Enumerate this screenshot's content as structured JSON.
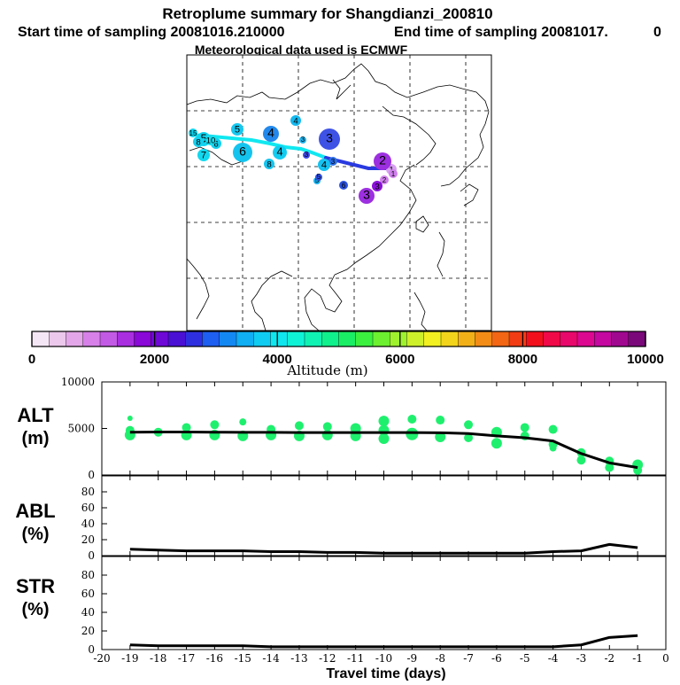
{
  "header": {
    "title": "Retroplume summary for Shangdianzi_200810",
    "start_label": "Start time of sampling 20081016.210000",
    "end_label": "End time of sampling 20081017.",
    "end_suffix": "0",
    "met_label": "Meteorological data used is ECMWF"
  },
  "colorbar": {
    "ticks": [
      "0",
      "2000",
      "4000",
      "6000",
      "8000",
      "10000"
    ],
    "label": "Altitude (m)",
    "colors": [
      "#f5e6f5",
      "#ecc8ec",
      "#e3a6e8",
      "#d680e8",
      "#c35ae5",
      "#a82ee0",
      "#8a08d8",
      "#6e08d6",
      "#4a10d4",
      "#2e30e0",
      "#1e5ef0",
      "#1488f2",
      "#10aef2",
      "#10ccf2",
      "#10e6ee",
      "#10f2d6",
      "#10f2b4",
      "#10f08c",
      "#1aee64",
      "#3cf040",
      "#6cf030",
      "#9ef22e",
      "#cef02a",
      "#f2f020",
      "#f2d41c",
      "#f2b018",
      "#f28c16",
      "#f26614",
      "#f23c14",
      "#f2101c",
      "#f00a48",
      "#e8086c",
      "#dc0890",
      "#c408a0",
      "#a00890",
      "#7a087a"
    ]
  },
  "map": {
    "points": [
      {
        "label": "1",
        "color": "#d7a0f0"
      },
      {
        "label": "2",
        "color": "#9c2fe0"
      },
      {
        "label": "3",
        "color": "#9c2fe0"
      },
      {
        "label": "1",
        "color": "#d080ec"
      },
      {
        "label": "2",
        "color": "#d080ec"
      },
      {
        "label": "3",
        "color": "#8a10d8"
      },
      {
        "label": "3",
        "color": "#3f52e6"
      },
      {
        "label": "3",
        "color": "#2a6de8"
      },
      {
        "label": "3",
        "color": "#3c48e4"
      },
      {
        "label": "4",
        "color": "#14b8ee"
      },
      {
        "label": "4",
        "color": "#2288ec"
      },
      {
        "label": "4",
        "color": "#16c2f0"
      },
      {
        "label": "3",
        "color": "#22b4ee"
      },
      {
        "label": "4",
        "color": "#12ccf0"
      },
      {
        "label": "5",
        "color": "#16c8f0"
      },
      {
        "label": "5",
        "color": "#10d4f0"
      },
      {
        "label": "5",
        "color": "#18b0ec"
      },
      {
        "label": "6",
        "color": "#14c4ee"
      },
      {
        "label": "6",
        "color": "#12d0ee"
      },
      {
        "label": "8",
        "color": "#16c4ee"
      },
      {
        "label": "7",
        "color": "#12d8ee"
      },
      {
        "label": "10",
        "color": "#18dcee"
      },
      {
        "label": "8",
        "color": "#14d0ee"
      },
      {
        "label": "15",
        "color": "#12d4ee"
      },
      {
        "label": "5",
        "color": "#3050e0"
      },
      {
        "label": "6",
        "color": "#2a52e0"
      }
    ]
  },
  "chart_data": [
    {
      "type": "line",
      "panel": "ALT",
      "ylabel": "ALT",
      "yunit": "(m)",
      "ylim": [
        0,
        10000
      ],
      "yticks": [
        "0",
        "5000",
        "10000"
      ],
      "series": [
        {
          "name": "mean altitude",
          "x": [
            -19,
            -18,
            -17,
            -16,
            -15,
            -14,
            -13,
            -12,
            -11,
            -10,
            -9,
            -8,
            -7,
            -6,
            -5,
            -4,
            -3,
            -2,
            -1
          ],
          "values": [
            4600,
            4620,
            4620,
            4600,
            4580,
            4580,
            4560,
            4560,
            4560,
            4560,
            4560,
            4540,
            4450,
            4200,
            4000,
            3650,
            2300,
            1300,
            800
          ]
        }
      ],
      "scatter_x": [
        -19,
        -19,
        -19,
        -18,
        -17,
        -17,
        -16,
        -16,
        -15,
        -15,
        -14,
        -14,
        -13,
        -13,
        -12,
        -12,
        -11,
        -11,
        -10,
        -10,
        -10,
        -9,
        -9,
        -8,
        -8,
        -7,
        -7,
        -6,
        -6,
        -5,
        -5,
        -4,
        -4,
        -4,
        -3,
        -3,
        -2,
        -2,
        -1,
        -1
      ],
      "scatter_y": [
        6100,
        4800,
        4300,
        4600,
        5100,
        4300,
        5400,
        4300,
        5700,
        4200,
        4900,
        4300,
        5300,
        4200,
        5200,
        4300,
        5000,
        4200,
        5800,
        4800,
        3900,
        6000,
        4400,
        5900,
        4100,
        5400,
        4000,
        4600,
        3400,
        5100,
        4200,
        4900,
        3300,
        2900,
        2400,
        1600,
        1500,
        800,
        1100,
        500
      ],
      "scatter_r": [
        3,
        5,
        6,
        5,
        5,
        6,
        5,
        6,
        4,
        6,
        5,
        6,
        5,
        6,
        5,
        6,
        6,
        6,
        6,
        6,
        6,
        5,
        7,
        5,
        6,
        5,
        5,
        6,
        6,
        5,
        5,
        5,
        5,
        4,
        5,
        5,
        5,
        5,
        6,
        5
      ]
    },
    {
      "type": "line",
      "panel": "ABL",
      "ylabel": "ABL",
      "yunit": "(%)",
      "ylim": [
        0,
        100
      ],
      "yticks": [
        "0",
        "20",
        "40",
        "60",
        "80"
      ],
      "series": [
        {
          "name": "ABL fraction",
          "x": [
            -19,
            -18,
            -17,
            -16,
            -15,
            -14,
            -13,
            -12,
            -11,
            -10,
            -9,
            -8,
            -7,
            -6,
            -5,
            -4,
            -3,
            -2,
            -1
          ],
          "values": [
            8,
            7,
            6,
            6,
            6,
            5,
            5,
            4,
            4,
            3,
            3,
            3,
            3,
            3,
            3,
            5,
            6,
            14,
            10
          ]
        }
      ]
    },
    {
      "type": "line",
      "panel": "STR",
      "ylabel": "STR",
      "yunit": "(%)",
      "ylim": [
        0,
        100
      ],
      "yticks": [
        "0",
        "20",
        "40",
        "60",
        "80"
      ],
      "xlabel": "Travel time (days)",
      "xlim": [
        -20,
        0
      ],
      "xticks": [
        "-20",
        "-19",
        "-18",
        "-17",
        "-16",
        "-15",
        "-14",
        "-13",
        "-12",
        "-11",
        "-10",
        "-9",
        "-8",
        "-7",
        "-6",
        "-5",
        "-4",
        "-3",
        "-2",
        "-1",
        "0"
      ],
      "series": [
        {
          "name": "stratospheric fraction",
          "x": [
            -19,
            -18,
            -17,
            -16,
            -15,
            -14,
            -13,
            -12,
            -11,
            -10,
            -9,
            -8,
            -7,
            -6,
            -5,
            -4,
            -3,
            -2,
            -1
          ],
          "values": [
            5,
            4,
            4,
            4,
            4,
            3,
            3,
            3,
            3,
            3,
            3,
            3,
            3,
            3,
            3,
            3,
            5,
            13,
            15
          ]
        }
      ]
    }
  ]
}
